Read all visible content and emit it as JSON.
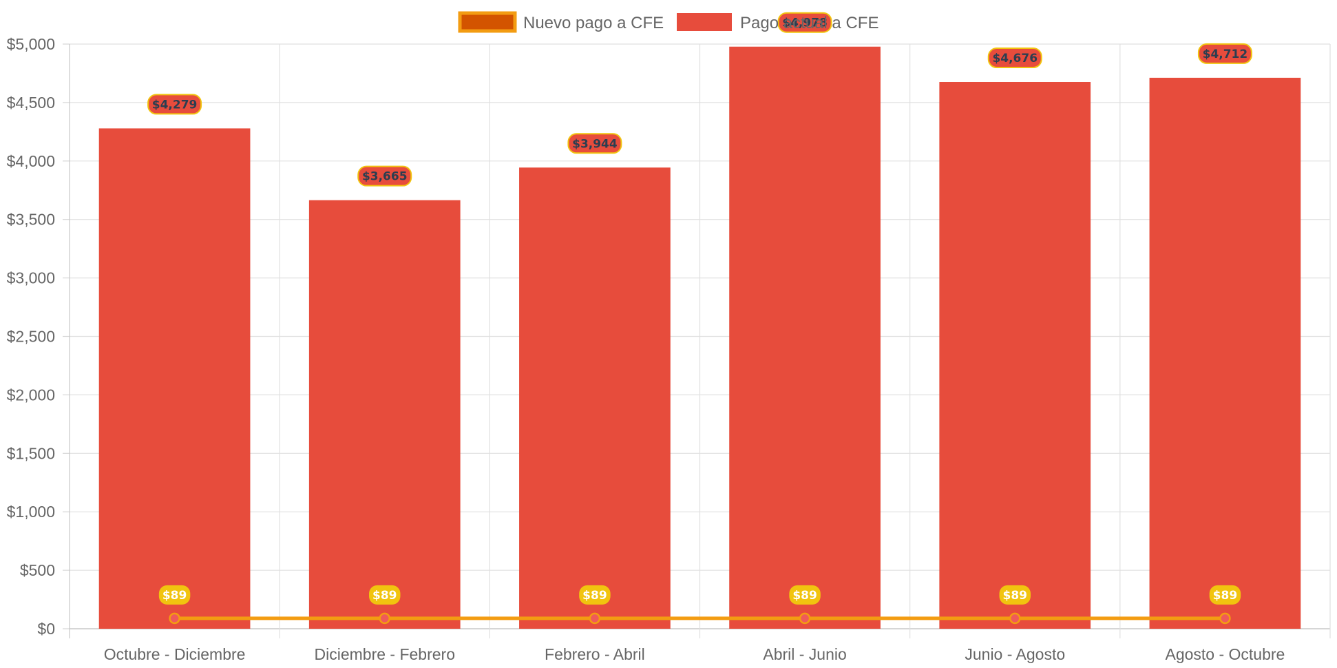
{
  "chart_data": {
    "type": "bar",
    "categories": [
      "Octubre - Diciembre",
      "Diciembre - Febrero",
      "Febrero - Abril",
      "Abril - Junio",
      "Junio - Agosto",
      "Agosto - Octubre"
    ],
    "series": [
      {
        "name": "Nuevo pago a CFE",
        "type": "line",
        "values": [
          89,
          89,
          89,
          89,
          89,
          89
        ],
        "labels": [
          "$89",
          "$89",
          "$89",
          "$89",
          "$89",
          "$89"
        ],
        "color": "#f39c12",
        "fill_color": "#d35400",
        "label_bg": "#f1c40f",
        "label_text_color": "#ffffff"
      },
      {
        "name": "Pago actual a CFE",
        "type": "bar",
        "values": [
          4279,
          3665,
          3944,
          4978,
          4676,
          4712
        ],
        "labels": [
          "$4,279",
          "$3,665",
          "$3,944",
          "$4,978",
          "$4,676",
          "$4,712"
        ],
        "color": "#e74c3c",
        "label_bg": "#e74c3c",
        "label_border": "#f1c40f",
        "label_text_color": "#2c3e50"
      }
    ],
    "y_ticks": [
      "$0",
      "$500",
      "$1,000",
      "$1,500",
      "$2,000",
      "$2,500",
      "$3,000",
      "$3,500",
      "$4,000",
      "$4,500",
      "$5,000"
    ],
    "ylim": [
      0,
      5000
    ],
    "grid": true,
    "legend_position": "top",
    "legend": {
      "line_label": "Nuevo pago a CFE",
      "bar_label": "Pago actual a CFE"
    }
  }
}
